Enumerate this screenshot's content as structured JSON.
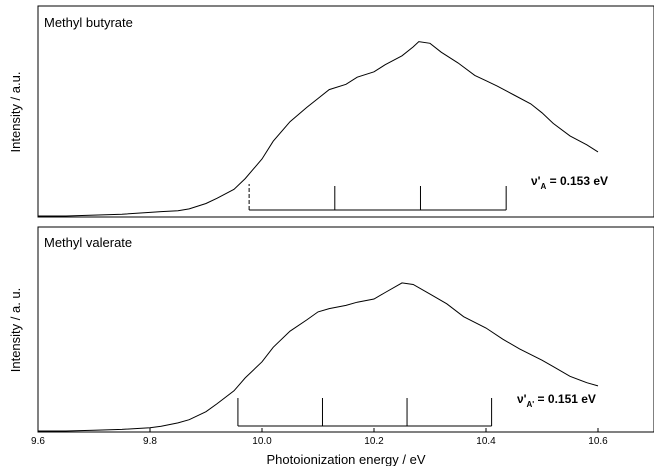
{
  "chart_data": [
    {
      "type": "line",
      "title": "Methyl butyrate",
      "ylabel": "Intensity / a.u.",
      "xlabel": "",
      "xlim": [
        9.6,
        10.7
      ],
      "ylim": [
        0,
        1
      ],
      "grid": false,
      "series": [
        {
          "x": [
            9.6,
            9.65,
            9.7,
            9.75,
            9.8,
            9.82,
            9.85,
            9.87,
            9.9,
            9.92,
            9.95,
            9.97,
            10.0,
            10.02,
            10.05,
            10.08,
            10.1,
            10.12,
            10.15,
            10.17,
            10.2,
            10.22,
            10.25,
            10.27,
            10.28,
            10.3,
            10.32,
            10.35,
            10.38,
            10.4,
            10.42,
            10.45,
            10.48,
            10.5,
            10.52,
            10.55,
            10.58,
            10.6
          ],
          "y": [
            0.0,
            0.0,
            0.005,
            0.01,
            0.02,
            0.025,
            0.03,
            0.04,
            0.07,
            0.1,
            0.15,
            0.21,
            0.32,
            0.42,
            0.53,
            0.61,
            0.66,
            0.71,
            0.74,
            0.78,
            0.81,
            0.85,
            0.9,
            0.95,
            0.98,
            0.97,
            0.92,
            0.86,
            0.79,
            0.76,
            0.73,
            0.68,
            0.63,
            0.58,
            0.52,
            0.45,
            0.4,
            0.36
          ]
        }
      ],
      "progression": {
        "positions": [
          9.977,
          10.13,
          10.283,
          10.436
        ],
        "dashed_first": true
      },
      "annotation": {
        "symbol": "ν'",
        "subscript": "A",
        "text": " = 0.153 eV"
      }
    },
    {
      "type": "line",
      "title": "Methyl valerate",
      "ylabel": "Intensity / a. u.",
      "xlabel": "Photoionization energy / eV",
      "xlim": [
        9.6,
        10.7
      ],
      "ylim": [
        0,
        1
      ],
      "grid": false,
      "x_ticks": [
        "9.6",
        "9.8",
        "10.0",
        "10.2",
        "10.4",
        "10.6"
      ],
      "series": [
        {
          "x": [
            9.6,
            9.65,
            9.7,
            9.75,
            9.8,
            9.82,
            9.85,
            9.87,
            9.9,
            9.92,
            9.95,
            9.97,
            10.0,
            10.02,
            10.05,
            10.08,
            10.1,
            10.12,
            10.15,
            10.17,
            10.2,
            10.22,
            10.25,
            10.27,
            10.3,
            10.33,
            10.36,
            10.4,
            10.43,
            10.46,
            10.5,
            10.52,
            10.55,
            10.58,
            10.6
          ],
          "y": [
            0.0,
            0.0,
            0.005,
            0.01,
            0.02,
            0.03,
            0.05,
            0.07,
            0.12,
            0.17,
            0.25,
            0.33,
            0.43,
            0.52,
            0.62,
            0.69,
            0.74,
            0.76,
            0.78,
            0.8,
            0.82,
            0.86,
            0.92,
            0.91,
            0.85,
            0.79,
            0.71,
            0.64,
            0.57,
            0.51,
            0.44,
            0.4,
            0.34,
            0.3,
            0.28
          ]
        }
      ],
      "progression": {
        "positions": [
          9.957,
          10.108,
          10.259,
          10.41
        ],
        "dashed_first": false
      },
      "annotation": {
        "symbol": "ν'",
        "subscript": "A'",
        "text": " = 0.151 eV"
      }
    }
  ]
}
